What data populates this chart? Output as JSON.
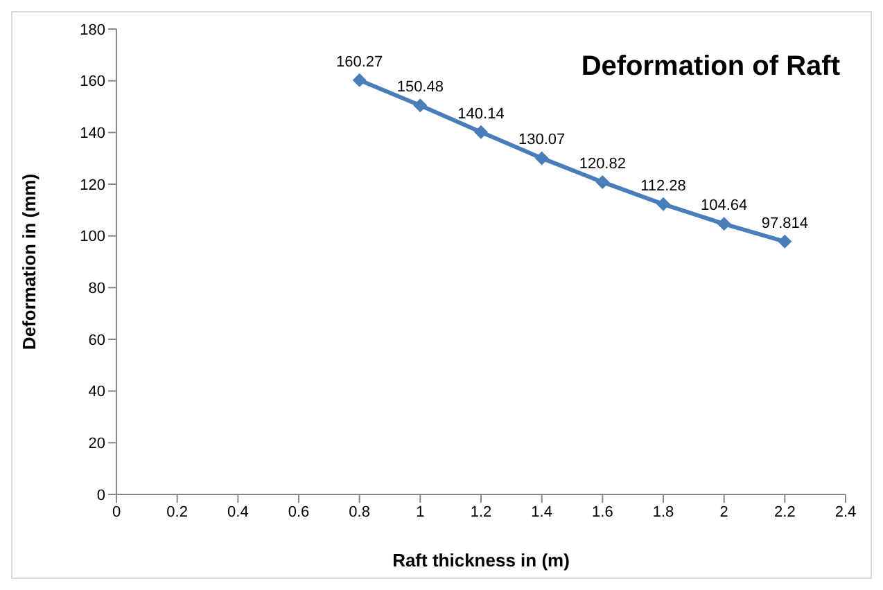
{
  "chart_data": {
    "type": "line",
    "title": "Deformation of Raft",
    "xlabel": "Raft thickness in (m)",
    "ylabel": "Deformation in (mm)",
    "x": [
      0.8,
      1,
      1.2,
      1.4,
      1.6,
      1.8,
      2,
      2.2
    ],
    "series": [
      {
        "color": "#4a7ebb",
        "values": [
          160.27,
          150.48,
          140.14,
          130.07,
          120.82,
          112.28,
          104.64,
          97.814
        ]
      }
    ],
    "xlim": [
      0,
      2.4
    ],
    "xticks": [
      0,
      0.2,
      0.4,
      0.6,
      0.8,
      1,
      1.2,
      1.4,
      1.6,
      1.8,
      2,
      2.2,
      2.4
    ],
    "ylim": [
      0,
      180
    ],
    "yticks": [
      0,
      20,
      40,
      60,
      80,
      100,
      120,
      140,
      160,
      180
    ],
    "marker": "diamond",
    "data_labels": true,
    "grid": false,
    "legend": false
  }
}
